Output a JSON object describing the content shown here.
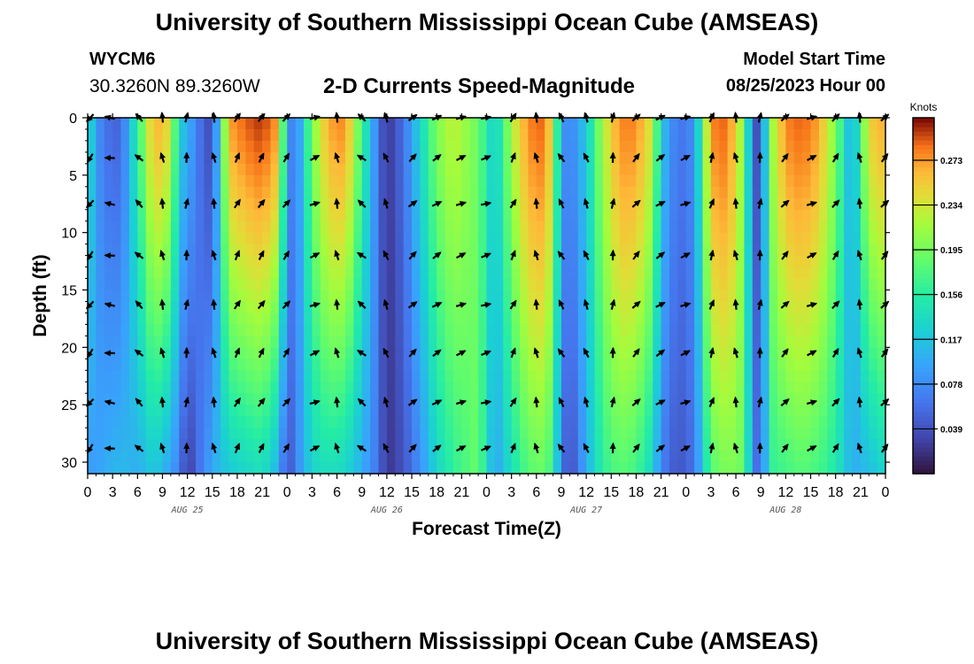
{
  "header": {
    "title": "University of Southern Mississippi Ocean Cube (AMSEAS)",
    "station": "WYCM6",
    "coordinates": "30.3260N  89.3260W",
    "subtitle": "2-D Currents Speed-Magnitude",
    "model_start_label": "Model Start Time",
    "model_start_value": "08/25/2023 Hour 00"
  },
  "footer": {
    "title": "University of Southern Mississippi Ocean Cube (AMSEAS)"
  },
  "chart_data": {
    "type": "heatmap",
    "title": "2-D Currents Speed-Magnitude",
    "xlabel": "Forecast Time(Z)",
    "ylabel": "Depth (ft)",
    "x_tick_labels": [
      "0",
      "3",
      "6",
      "9",
      "12",
      "15",
      "18",
      "21",
      "0",
      "3",
      "6",
      "9",
      "12",
      "15",
      "18",
      "21",
      "0",
      "3",
      "6",
      "9",
      "12",
      "15",
      "18",
      "21",
      "0",
      "3",
      "6",
      "9",
      "12",
      "15",
      "18",
      "21",
      "0"
    ],
    "x_range_hours": [
      0,
      96
    ],
    "date_labels": [
      {
        "label": "AUG 25",
        "hour": 12
      },
      {
        "label": "AUG 26",
        "hour": 36
      },
      {
        "label": "AUG 27",
        "hour": 60
      },
      {
        "label": "AUG 28",
        "hour": 84
      }
    ],
    "y_ticks": [
      0,
      5,
      10,
      15,
      20,
      25,
      30
    ],
    "y_tick_labels": [
      "0",
      "5",
      "10",
      "15",
      "20",
      "25",
      "30"
    ],
    "y_range": [
      0,
      31
    ],
    "y_inverted": true,
    "colorbar": {
      "label": "Knots",
      "ticks": [
        0.039,
        0.078,
        0.117,
        0.156,
        0.195,
        0.234,
        0.273
      ],
      "tick_labels": [
        "0.039",
        "0.078",
        "0.117",
        "0.156",
        "0.195",
        "0.234",
        "0.273"
      ],
      "range": [
        0.0,
        0.31
      ]
    },
    "speed_profile": {
      "hours": [
        0,
        1,
        2,
        4,
        6,
        8,
        10,
        11,
        12,
        13,
        15,
        17,
        19,
        21,
        23,
        24,
        25,
        27,
        29,
        31,
        33,
        35,
        36,
        38,
        40,
        42,
        44,
        47,
        49,
        51,
        53,
        55,
        56,
        57,
        58,
        60,
        62,
        64,
        66,
        68,
        69,
        71,
        73,
        75,
        77,
        79,
        80,
        81,
        82,
        84,
        86,
        88,
        90,
        92,
        94,
        96
      ],
      "surface_knots": [
        0.15,
        0.09,
        0.06,
        0.05,
        0.16,
        0.27,
        0.24,
        0.12,
        0.11,
        0.07,
        0.03,
        0.27,
        0.29,
        0.3,
        0.27,
        0.09,
        0.06,
        0.2,
        0.27,
        0.28,
        0.17,
        0.06,
        0.02,
        0.06,
        0.13,
        0.2,
        0.23,
        0.19,
        0.12,
        0.22,
        0.28,
        0.29,
        0.23,
        0.09,
        0.07,
        0.12,
        0.22,
        0.28,
        0.28,
        0.23,
        0.12,
        0.06,
        0.08,
        0.28,
        0.29,
        0.2,
        0.05,
        0.03,
        0.2,
        0.28,
        0.29,
        0.27,
        0.2,
        0.09,
        0.25,
        0.27
      ],
      "bottom_knots": [
        0.09,
        0.09,
        0.1,
        0.11,
        0.1,
        0.12,
        0.09,
        0.07,
        0.02,
        0.05,
        0.1,
        0.12,
        0.13,
        0.14,
        0.1,
        0.03,
        0.07,
        0.13,
        0.14,
        0.13,
        0.1,
        0.06,
        0.02,
        0.04,
        0.08,
        0.13,
        0.16,
        0.19,
        0.09,
        0.14,
        0.18,
        0.19,
        0.16,
        0.07,
        0.03,
        0.1,
        0.16,
        0.18,
        0.17,
        0.13,
        0.07,
        0.04,
        0.06,
        0.18,
        0.2,
        0.19,
        0.08,
        0.04,
        0.16,
        0.17,
        0.18,
        0.17,
        0.15,
        0.1,
        0.11,
        0.13
      ]
    },
    "vector_columns": {
      "hours": [
        0.3,
        2.7,
        6.2,
        9.0,
        11.9,
        15.2,
        18.0,
        20.9,
        23.9,
        27.3,
        30.0,
        33.0,
        35.9,
        39.1,
        42.0,
        44.9,
        47.9,
        51.2,
        54.0,
        57.0,
        60.0,
        63.2,
        66.0,
        68.9,
        71.9,
        75.1,
        78.0,
        80.9,
        83.9,
        87.1,
        90.0,
        92.9,
        95.9
      ],
      "angles_deg": [
        -130,
        170,
        135,
        100,
        80,
        100,
        60,
        55,
        50,
        20,
        100,
        140,
        110,
        40,
        30,
        20,
        15,
        60,
        100,
        120,
        110,
        80,
        45,
        30,
        20,
        70,
        100,
        80,
        45,
        20,
        50,
        100,
        45
      ]
    },
    "vector_depths_ft": [
      0,
      3.5,
      7.5,
      12,
      16.3,
      20.5,
      24.8,
      28.8
    ]
  }
}
